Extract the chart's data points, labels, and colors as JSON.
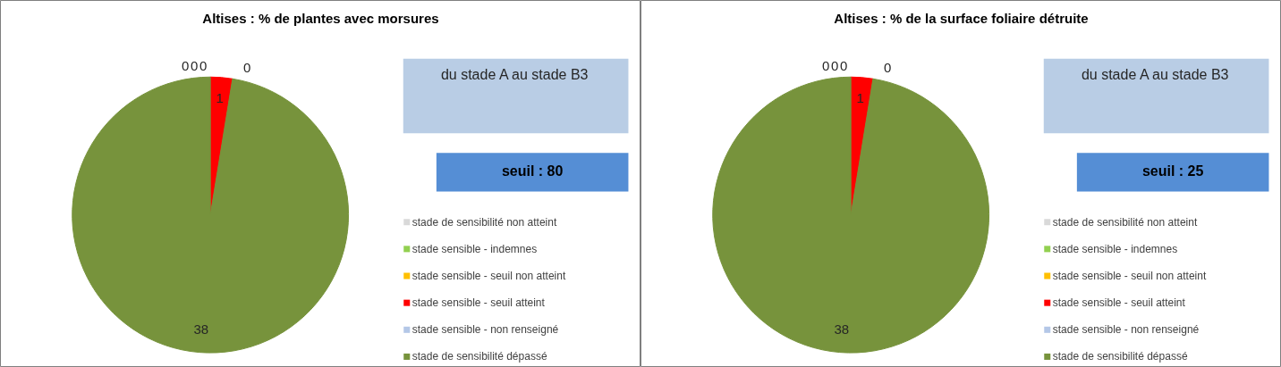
{
  "chart_data": [
    {
      "type": "pie",
      "title": "Altises : % de plantes avec morsures",
      "categories": [
        "stade de sensibilité non atteint",
        "stade sensible - indemnes",
        "stade sensible - seuil non atteint",
        "stade sensible - seuil atteint",
        "stade sensible - non renseigné",
        "stade de sensibilité dépassé"
      ],
      "values": [
        0,
        0,
        0,
        1,
        0,
        38
      ],
      "colors": [
        "#d9d9d9",
        "#92d050",
        "#ffc000",
        "#ff0000",
        "#b4c7e7",
        "#77933c"
      ],
      "value_labels": [
        "0",
        "0",
        "0",
        "1",
        "0",
        "38"
      ],
      "legend": "right",
      "annotations": [
        "du stade A au stade B3",
        "seuil : 80"
      ]
    },
    {
      "type": "pie",
      "title": "Altises : % de la surface foliaire détruite",
      "categories": [
        "stade de sensibilité non atteint",
        "stade sensible - indemnes",
        "stade sensible - seuil non atteint",
        "stade sensible - seuil atteint",
        "stade sensible - non renseigné",
        "stade de sensibilité dépassé"
      ],
      "values": [
        0,
        0,
        0,
        1,
        0,
        38
      ],
      "colors": [
        "#d9d9d9",
        "#92d050",
        "#ffc000",
        "#ff0000",
        "#b4c7e7",
        "#77933c"
      ],
      "value_labels": [
        "0",
        "0",
        "0",
        "1",
        "0",
        "38"
      ],
      "legend": "right",
      "annotations": [
        "du stade A au stade B3",
        "seuil : 25"
      ]
    }
  ]
}
